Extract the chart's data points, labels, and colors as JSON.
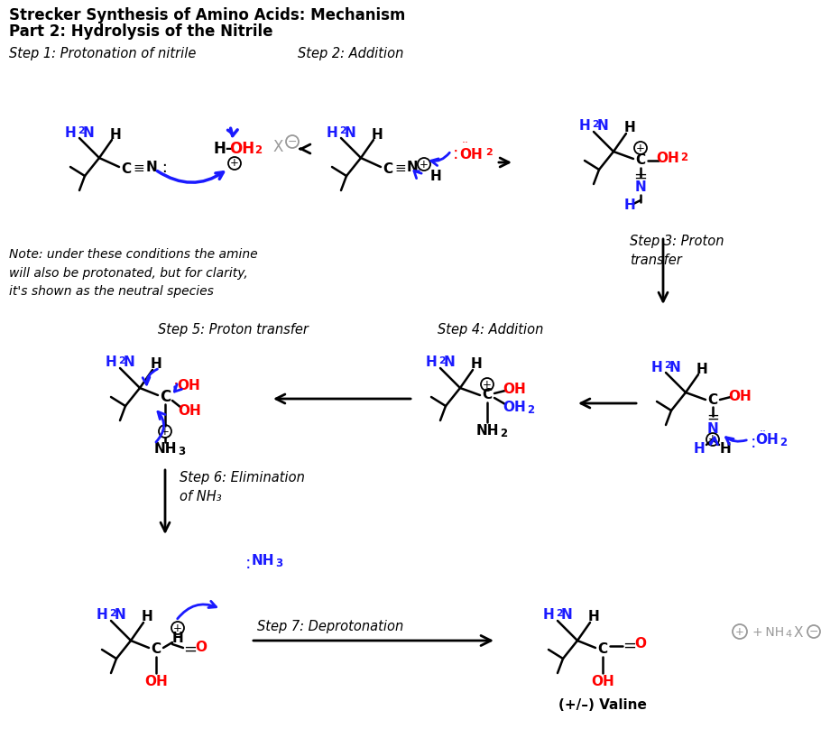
{
  "title_line1": "Strecker Synthesis of Amino Acids: Mechanism",
  "title_line2": "Part 2: Hydrolysis of the Nitrile",
  "bg_color": "#ffffff",
  "black": "#000000",
  "blue": "#1a1aff",
  "red": "#ff0000",
  "gray": "#999999",
  "step1_label": "Step 1: Protonation of nitrile",
  "step2_label": "Step 2: Addition",
  "step3_label": "Step 3: Proton\ntransfer",
  "step4_label": "Step 4: Addition",
  "step5_label": "Step 5: Proton transfer",
  "step6_label": "Step 6: Elimination\nof NH₃",
  "step7_label": "Step 7: Deprotonation",
  "note_text": "Note: under these conditions the amine\nwill also be protonated, but for clarity,\nit's shown as the neutral species",
  "final_label": "(+/–) Valine"
}
